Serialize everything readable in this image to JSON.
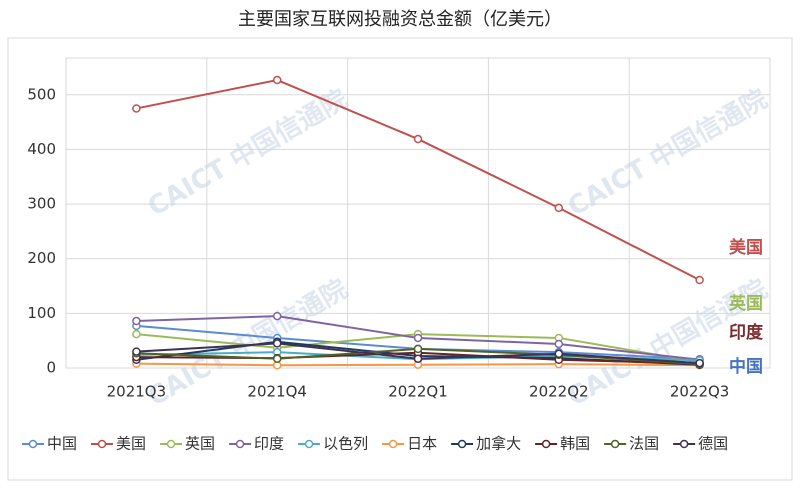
{
  "chart_data": {
    "type": "line",
    "title": "主要国家互联网投融资总金额（亿美元）",
    "categories": [
      "2021Q3",
      "2021Q4",
      "2022Q1",
      "2022Q2",
      "2022Q3"
    ],
    "ylim": [
      0,
      560
    ],
    "yticks": [
      0,
      100,
      200,
      300,
      400,
      500
    ],
    "grid": true,
    "watermark": "CAICT 中国信通院",
    "series": [
      {
        "name": "中国",
        "color": "#5b8bd0",
        "values": [
          77,
          55,
          35,
          29,
          16
        ]
      },
      {
        "name": "美国",
        "color": "#c0504d",
        "values": [
          475,
          527,
          419,
          293,
          161
        ]
      },
      {
        "name": "英国",
        "color": "#9bbb59",
        "values": [
          62,
          37,
          62,
          55,
          11
        ]
      },
      {
        "name": "印度",
        "color": "#8064a2",
        "values": [
          86,
          95,
          55,
          44,
          15
        ]
      },
      {
        "name": "以色列",
        "color": "#4bacc6",
        "values": [
          24,
          29,
          16,
          22,
          14
        ]
      },
      {
        "name": "日本",
        "color": "#f79646",
        "values": [
          8,
          5,
          6,
          7,
          5
        ]
      },
      {
        "name": "加拿大",
        "color": "#1f3864",
        "values": [
          15,
          48,
          22,
          18,
          6
        ]
      },
      {
        "name": "韩国",
        "color": "#632523",
        "values": [
          20,
          18,
          28,
          15,
          8
        ]
      },
      {
        "name": "法国",
        "color": "#4f6228",
        "values": [
          27,
          17,
          35,
          24,
          7
        ]
      },
      {
        "name": "德国",
        "color": "#3f3151",
        "values": [
          30,
          45,
          17,
          26,
          9
        ]
      }
    ],
    "annotations": [
      {
        "text": "美国",
        "color": "#c0504d"
      },
      {
        "text": "英国",
        "color": "#9bbb59"
      },
      {
        "text": "印度",
        "color": "#7b2c2c"
      },
      {
        "text": "中国",
        "color": "#4472c4"
      }
    ]
  }
}
